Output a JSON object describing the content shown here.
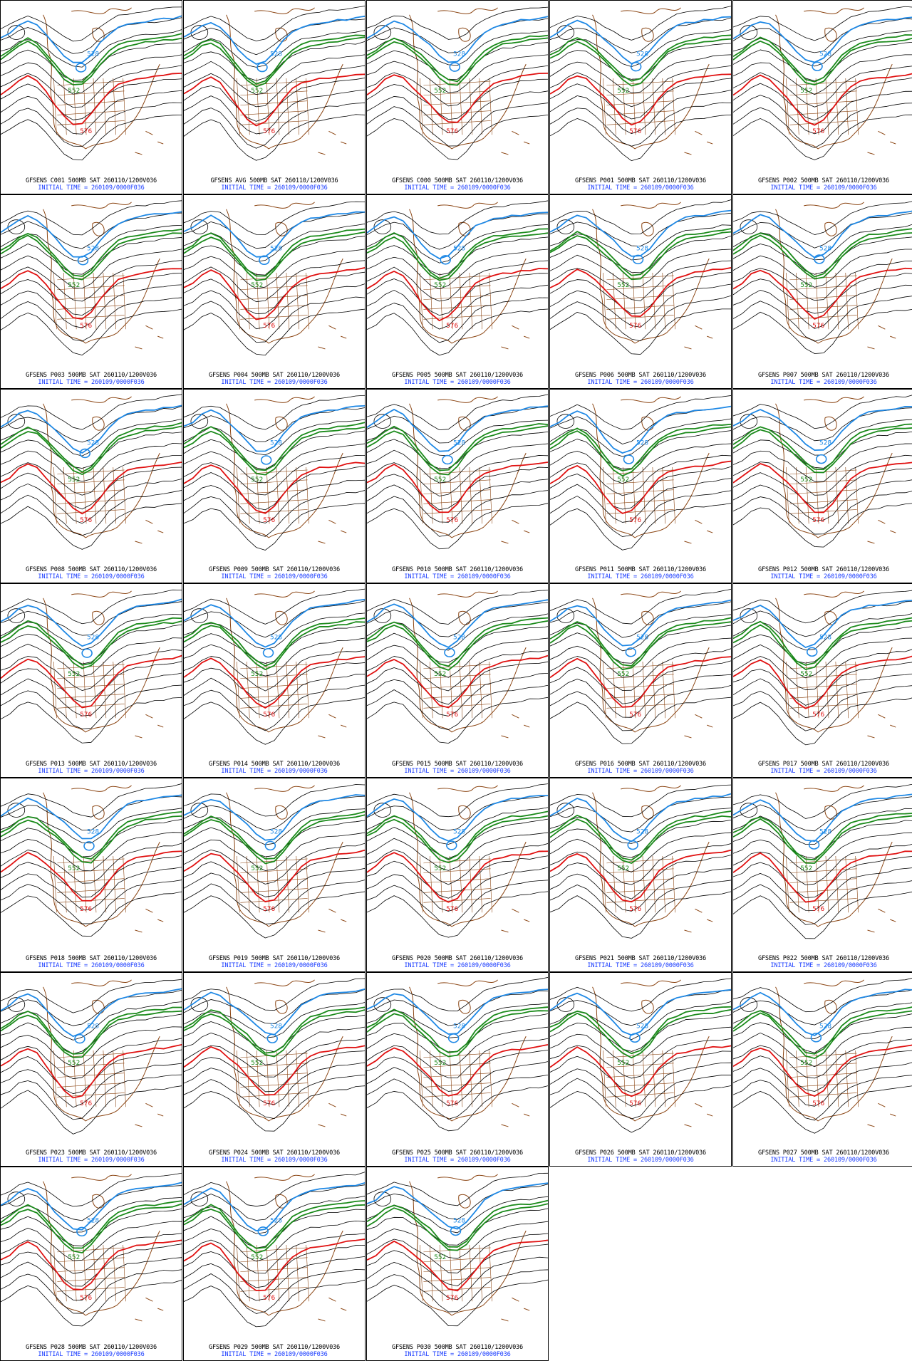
{
  "figure": {
    "model": "GFSENS",
    "level": "500MB",
    "valid": "SAT 260110/1200V036",
    "initial_time_label": "INITIAL TIME = 260109/0000F036",
    "contour_labels": {
      "blue": "528",
      "green": "552",
      "red": "576"
    },
    "colors": {
      "black_contour": "#000000",
      "blue_contour": "#1e88e5",
      "green_contour": "#1a8a1a",
      "red_contour": "#e01010",
      "coastline": "#8b4513",
      "caption_line2": "#1a3cff"
    }
  },
  "panels": [
    {
      "member": "C001",
      "caption": "GFSENS C001 500MB SAT 260110/1200V036",
      "sub": "INITIAL TIME = 260109/0000F036"
    },
    {
      "member": "AVG",
      "caption": "GFSENS AVG 500MB SAT 260110/1200V036",
      "sub": "INITIAL TIME = 260109/0000F036"
    },
    {
      "member": "C000",
      "caption": "GFSENS C000 500MB SAT 260110/1200V036",
      "sub": "INITIAL TIME = 260109/0000F036"
    },
    {
      "member": "P001",
      "caption": "GFSENS P001 500MB SAT 260110/1200V036",
      "sub": "INITIAL TIME = 260109/0000F036"
    },
    {
      "member": "P002",
      "caption": "GFSENS P002 500MB SAT 260110/1200V036",
      "sub": "INITIAL TIME = 260109/0000F036"
    },
    {
      "member": "P003",
      "caption": "GFSENS P003 500MB SAT 260110/1200V036",
      "sub": "INITIAL TIME = 260109/0000F036"
    },
    {
      "member": "P004",
      "caption": "GFSENS P004 500MB SAT 260110/1200V036",
      "sub": "INITIAL TIME = 260109/0000F036"
    },
    {
      "member": "P005",
      "caption": "GFSENS P005 500MB SAT 260110/1200V036",
      "sub": "INITIAL TIME = 260109/0000F036"
    },
    {
      "member": "P006",
      "caption": "GFSENS P006 500MB SAT 260110/1200V036",
      "sub": "INITIAL TIME = 260109/0000F036"
    },
    {
      "member": "P007",
      "caption": "GFSENS P007 500MB SAT 260110/1200V036",
      "sub": "INITIAL TIME = 260109/0000F036"
    },
    {
      "member": "P008",
      "caption": "GFSENS P008 500MB SAT 260110/1200V036",
      "sub": "INITIAL TIME = 260109/0000F036"
    },
    {
      "member": "P009",
      "caption": "GFSENS P009 500MB SAT 260110/1200V036",
      "sub": "INITIAL TIME = 260109/0000F036"
    },
    {
      "member": "P010",
      "caption": "GFSENS P010 500MB SAT 260110/1200V036",
      "sub": "INITIAL TIME = 260109/0000F036"
    },
    {
      "member": "P011",
      "caption": "GFSENS P011 500MB SAT 260110/1200V036",
      "sub": "INITIAL TIME = 260109/0000F036"
    },
    {
      "member": "P012",
      "caption": "GFSENS P012 500MB SAT 260110/1200V036",
      "sub": "INITIAL TIME = 260109/0000F036"
    },
    {
      "member": "P013",
      "caption": "GFSENS P013 500MB SAT 260110/1200V036",
      "sub": "INITIAL TIME = 260109/0000F036"
    },
    {
      "member": "P014",
      "caption": "GFSENS P014 500MB SAT 260110/1200V036",
      "sub": "INITIAL TIME = 260109/0000F036"
    },
    {
      "member": "P015",
      "caption": "GFSENS P015 500MB SAT 260110/1200V036",
      "sub": "INITIAL TIME = 260109/0000F036"
    },
    {
      "member": "P016",
      "caption": "GFSENS P016 500MB SAT 260110/1200V036",
      "sub": "INITIAL TIME = 260109/0000F036"
    },
    {
      "member": "P017",
      "caption": "GFSENS P017 500MB SAT 260110/1200V036",
      "sub": "INITIAL TIME = 260109/0000F036"
    },
    {
      "member": "P018",
      "caption": "GFSENS P018 500MB SAT 260110/1200V036",
      "sub": "INITIAL TIME = 260109/0000F036"
    },
    {
      "member": "P019",
      "caption": "GFSENS P019 500MB SAT 260110/1200V036",
      "sub": "INITIAL TIME = 260109/0000F036"
    },
    {
      "member": "P020",
      "caption": "GFSENS P020 500MB SAT 260110/1200V036",
      "sub": "INITIAL TIME = 260109/0000F036"
    },
    {
      "member": "P021",
      "caption": "GFSENS P021 500MB SAT 260110/1200V036",
      "sub": "INITIAL TIME = 260109/0000F036"
    },
    {
      "member": "P022",
      "caption": "GFSENS P022 500MB SAT 260110/1200V036",
      "sub": "INITIAL TIME = 260109/0000F036"
    },
    {
      "member": "P023",
      "caption": "GFSENS P023 500MB SAT 260110/1200V036",
      "sub": "INITIAL TIME = 260109/0000F036"
    },
    {
      "member": "P024",
      "caption": "GFSENS P024 500MB SAT 260110/1200V036",
      "sub": "INITIAL TIME = 260109/0000F036"
    },
    {
      "member": "P025",
      "caption": "GFSENS P025 500MB SAT 260110/1200V036",
      "sub": "INITIAL TIME = 260109/0000F036"
    },
    {
      "member": "P026",
      "caption": "GFSENS P026 500MB SAT 260110/1200V036",
      "sub": "INITIAL TIME = 260109/0000F036"
    },
    {
      "member": "P027",
      "caption": "GFSENS P027 500MB SAT 260110/1200V036",
      "sub": "INITIAL TIME = 260109/0000F036"
    },
    {
      "member": "P028",
      "caption": "GFSENS P028 500MB SAT 260110/1200V036",
      "sub": "INITIAL TIME = 260109/0000F036"
    },
    {
      "member": "P029",
      "caption": "GFSENS P029 500MB SAT 260110/1200V036",
      "sub": "INITIAL TIME = 260109/0000F036"
    },
    {
      "member": "P030",
      "caption": "GFSENS P030 500MB SAT 260110/1200V036",
      "sub": "INITIAL TIME = 260109/0000F036"
    }
  ]
}
